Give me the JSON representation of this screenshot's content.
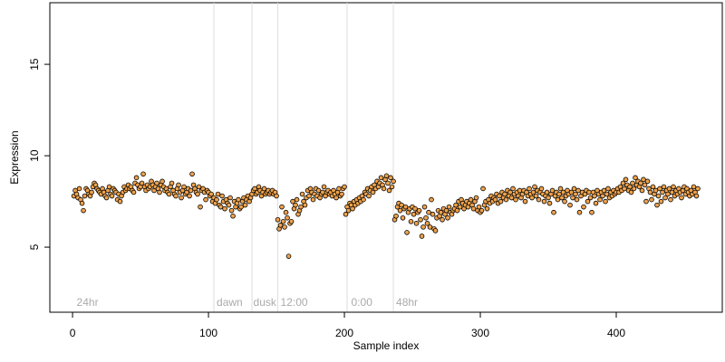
{
  "chart_data": {
    "type": "scatter",
    "x_label": "Sample index",
    "y_label": "Expression",
    "xlim": [
      -16.7,
      478
    ],
    "ylim": [
      1.44,
      18.37
    ],
    "xticks": [
      0,
      100,
      200,
      300,
      400
    ],
    "yticks": [
      5,
      10,
      15
    ],
    "vlines": [
      104,
      132,
      151,
      202,
      236
    ],
    "annotations": [
      {
        "x": 3,
        "label": "24hr"
      },
      {
        "x": 106,
        "label": "dawn"
      },
      {
        "x": 133,
        "label": "dusk"
      },
      {
        "x": 153,
        "label": "12:00"
      },
      {
        "x": 205,
        "label": "0:00"
      },
      {
        "x": 238,
        "label": "48hr"
      }
    ],
    "series": [
      {
        "name": "Expression",
        "color": "#eea24c",
        "x": [
          1,
          2,
          3,
          4,
          5,
          6,
          7,
          8,
          9,
          10,
          11,
          12,
          13,
          14,
          15,
          16,
          17,
          18,
          19,
          20,
          21,
          22,
          23,
          24,
          25,
          26,
          27,
          28,
          29,
          30,
          31,
          32,
          33,
          34,
          35,
          36,
          37,
          38,
          39,
          40,
          41,
          42,
          43,
          44,
          45,
          46,
          47,
          48,
          49,
          50,
          51,
          52,
          53,
          54,
          55,
          56,
          57,
          58,
          59,
          60,
          61,
          62,
          63,
          64,
          65,
          66,
          67,
          68,
          69,
          70,
          71,
          72,
          73,
          74,
          75,
          76,
          77,
          78,
          79,
          80,
          81,
          82,
          83,
          84,
          85,
          86,
          87,
          88,
          89,
          90,
          91,
          92,
          93,
          94,
          95,
          96,
          97,
          98,
          99,
          100,
          101,
          102,
          103,
          104,
          105,
          106,
          107,
          108,
          109,
          110,
          111,
          112,
          113,
          114,
          115,
          116,
          117,
          118,
          119,
          120,
          121,
          122,
          123,
          124,
          125,
          126,
          127,
          128,
          129,
          130,
          131,
          132,
          133,
          134,
          135,
          136,
          137,
          138,
          139,
          140,
          141,
          142,
          143,
          144,
          145,
          146,
          147,
          148,
          149,
          150,
          151,
          152,
          153,
          154,
          155,
          156,
          157,
          158,
          159,
          160,
          161,
          162,
          163,
          164,
          165,
          166,
          167,
          168,
          169,
          170,
          171,
          172,
          173,
          174,
          175,
          176,
          177,
          178,
          179,
          180,
          181,
          182,
          183,
          184,
          185,
          186,
          187,
          188,
          189,
          190,
          191,
          192,
          193,
          194,
          195,
          196,
          197,
          198,
          199,
          200,
          201,
          202,
          203,
          204,
          205,
          206,
          207,
          208,
          209,
          210,
          211,
          212,
          213,
          214,
          215,
          216,
          217,
          218,
          219,
          220,
          221,
          222,
          223,
          224,
          225,
          226,
          227,
          228,
          229,
          230,
          231,
          232,
          233,
          234,
          235,
          236,
          237,
          238,
          239,
          240,
          241,
          242,
          243,
          244,
          245,
          246,
          247,
          248,
          249,
          250,
          251,
          252,
          253,
          254,
          255,
          256,
          257,
          258,
          259,
          260,
          261,
          262,
          263,
          264,
          265,
          266,
          267,
          268,
          269,
          270,
          271,
          272,
          273,
          274,
          275,
          276,
          277,
          278,
          279,
          280,
          281,
          282,
          283,
          284,
          285,
          286,
          287,
          288,
          289,
          290,
          291,
          292,
          293,
          294,
          295,
          296,
          297,
          298,
          299,
          300,
          301,
          302,
          303,
          304,
          305,
          306,
          307,
          308,
          309,
          310,
          311,
          312,
          313,
          314,
          315,
          316,
          317,
          318,
          319,
          320,
          321,
          322,
          323,
          324,
          325,
          326,
          327,
          328,
          329,
          330,
          331,
          332,
          333,
          334,
          335,
          336,
          337,
          338,
          339,
          340,
          341,
          342,
          343,
          344,
          345,
          346,
          347,
          348,
          349,
          350,
          351,
          352,
          353,
          354,
          355,
          356,
          357,
          358,
          359,
          360,
          361,
          362,
          363,
          364,
          365,
          366,
          367,
          368,
          369,
          370,
          371,
          372,
          373,
          374,
          375,
          376,
          377,
          378,
          379,
          380,
          381,
          382,
          383,
          384,
          385,
          386,
          387,
          388,
          389,
          390,
          391,
          392,
          393,
          394,
          395,
          396,
          397,
          398,
          399,
          400,
          401,
          402,
          403,
          404,
          405,
          406,
          407,
          408,
          409,
          410,
          411,
          412,
          413,
          414,
          415,
          416,
          417,
          418,
          419,
          420,
          421,
          422,
          423,
          424,
          425,
          426,
          427,
          428,
          429,
          430,
          431,
          432,
          433,
          434,
          435,
          436,
          437,
          438,
          439,
          440,
          441,
          442,
          443,
          444,
          445,
          446,
          447,
          448,
          449,
          450,
          451,
          452,
          453,
          454,
          455,
          456,
          457,
          458,
          459,
          460
        ],
        "values": [
          7.8,
          8.1,
          7.9,
          7.7,
          8.2,
          7.6,
          7.4,
          7.0,
          7.8,
          8.2,
          8.1,
          7.9,
          7.8,
          8.0,
          8.3,
          8.5,
          8.4,
          8.2,
          8.1,
          8.0,
          7.9,
          8.2,
          8.0,
          7.8,
          7.7,
          8.1,
          8.3,
          7.9,
          7.8,
          8.2,
          8.1,
          8.0,
          7.6,
          7.9,
          7.5,
          7.8,
          8.0,
          8.3,
          8.1,
          8.2,
          8.4,
          8.2,
          8.3,
          8.1,
          8.0,
          8.5,
          8.8,
          8.4,
          8.2,
          8.3,
          8.5,
          9.0,
          8.3,
          8.1,
          8.4,
          8.2,
          8.3,
          8.6,
          8.4,
          8.1,
          8.3,
          8.5,
          8.2,
          8.0,
          8.4,
          8.6,
          8.3,
          8.1,
          8.2,
          8.0,
          7.9,
          8.3,
          8.5,
          8.1,
          7.9,
          7.8,
          8.2,
          8.4,
          8.0,
          7.7,
          8.1,
          8.3,
          7.9,
          8.0,
          8.2,
          7.8,
          8.1,
          9.0,
          8.4,
          8.2,
          8.0,
          7.9,
          8.3,
          7.2,
          8.1,
          8.2,
          8.0,
          7.6,
          8.1,
          8.0,
          7.8,
          7.9,
          7.5,
          7.7,
          7.4,
          7.6,
          7.9,
          7.3,
          7.2,
          7.8,
          7.5,
          7.1,
          7.6,
          7.4,
          7.3,
          7.7,
          7.0,
          6.7,
          7.5,
          7.2,
          7.4,
          7.6,
          7.1,
          7.2,
          7.5,
          7.7,
          7.3,
          7.6,
          7.8,
          7.5,
          7.7,
          7.9,
          8.1,
          8.2,
          7.9,
          8.0,
          8.3,
          8.1,
          7.8,
          8.0,
          8.2,
          7.9,
          8.0,
          8.1,
          7.9,
          8.0,
          8.1,
          7.9,
          8.0,
          7.8,
          6.5,
          6.0,
          6.2,
          7.2,
          6.4,
          6.1,
          6.9,
          6.6,
          4.5,
          6.3,
          6.4,
          7.5,
          7.1,
          7.3,
          7.6,
          6.8,
          7.0,
          7.2,
          7.9,
          7.5,
          7.3,
          7.7,
          8.1,
          7.8,
          8.2,
          8.0,
          7.6,
          7.9,
          8.2,
          7.8,
          8.1,
          7.7,
          7.9,
          8.0,
          8.3,
          7.8,
          8.0,
          8.1,
          7.9,
          8.0,
          7.8,
          8.1,
          7.9,
          7.7,
          8.0,
          8.2,
          7.8,
          7.9,
          8.2,
          8.3,
          6.8,
          7.2,
          7.0,
          7.4,
          7.3,
          7.1,
          7.5,
          7.3,
          7.6,
          7.4,
          7.7,
          7.5,
          7.8,
          7.6,
          8.0,
          7.9,
          8.2,
          7.8,
          8.1,
          8.3,
          8.0,
          8.4,
          8.2,
          8.6,
          8.3,
          8.5,
          8.8,
          8.4,
          8.2,
          8.7,
          8.9,
          8.5,
          8.1,
          8.8,
          8.3,
          8.6,
          6.5,
          6.7,
          7.2,
          7.4,
          7.0,
          7.3,
          6.6,
          7.1,
          7.2,
          5.8,
          6.9,
          7.1,
          6.4,
          7.2,
          6.8,
          7.1,
          6.3,
          6.9,
          7.0,
          6.5,
          5.6,
          6.1,
          7.2,
          6.6,
          6.3,
          6.9,
          6.1,
          7.6,
          6.8,
          6.0,
          5.9,
          6.6,
          7.0,
          6.7,
          6.9,
          6.5,
          7.1,
          6.8,
          7.0,
          6.6,
          7.2,
          6.9,
          6.8,
          7.0,
          7.1,
          7.3,
          7.0,
          7.5,
          7.2,
          7.6,
          7.4,
          7.1,
          7.3,
          7.5,
          7.2,
          7.4,
          7.6,
          7.3,
          7.1,
          7.5,
          7.7,
          7.0,
          7.2,
          6.9,
          7.0,
          8.2,
          7.3,
          7.5,
          7.1,
          7.6,
          7.4,
          7.8,
          7.5,
          7.7,
          7.6,
          7.9,
          7.4,
          7.8,
          7.5,
          8.0,
          7.7,
          7.9,
          7.6,
          8.1,
          7.8,
          8.0,
          7.7,
          8.2,
          7.9,
          7.6,
          8.0,
          7.8,
          8.1,
          7.7,
          7.9,
          8.1,
          7.5,
          8.0,
          7.8,
          8.2,
          7.9,
          7.7,
          8.0,
          8.3,
          7.8,
          8.1,
          7.6,
          8.0,
          8.2,
          7.9,
          7.5,
          7.8,
          8.0,
          7.7,
          7.4,
          7.9,
          8.1,
          6.9,
          7.8,
          8.0,
          7.6,
          7.9,
          8.2,
          7.7,
          8.0,
          7.5,
          7.8,
          8.1,
          7.9,
          7.3,
          8.0,
          7.7,
          8.2,
          7.9,
          7.6,
          8.1,
          6.9,
          7.8,
          8.0,
          7.2,
          7.9,
          8.1,
          7.5,
          8.0,
          7.7,
          6.9,
          8.0,
          7.8,
          7.4,
          8.1,
          7.9,
          7.6,
          8.0,
          7.8,
          8.1,
          7.5,
          7.9,
          8.2,
          7.7,
          8.0,
          7.8,
          8.1,
          7.9,
          8.0,
          8.2,
          8.0,
          8.3,
          8.1,
          8.5,
          8.2,
          8.7,
          8.4,
          8.1,
          8.3,
          8.0,
          8.5,
          8.2,
          8.8,
          8.4,
          8.6,
          8.3,
          8.5,
          8.1,
          8.7,
          8.4,
          7.5,
          8.6,
          8.2,
          8.0,
          7.6,
          8.3,
          7.9,
          8.1,
          7.3,
          7.8,
          8.2,
          7.5,
          8.0,
          8.3,
          7.7,
          8.1,
          7.9,
          8.2,
          7.6,
          8.0,
          8.3,
          7.8,
          8.1,
          7.9,
          8.2,
          8.0,
          7.7,
          8.1,
          8.3,
          7.9,
          8.2,
          8.0,
          7.8,
          8.1,
          7.9,
          8.3,
          8.0,
          7.8,
          8.2
        ]
      }
    ]
  }
}
